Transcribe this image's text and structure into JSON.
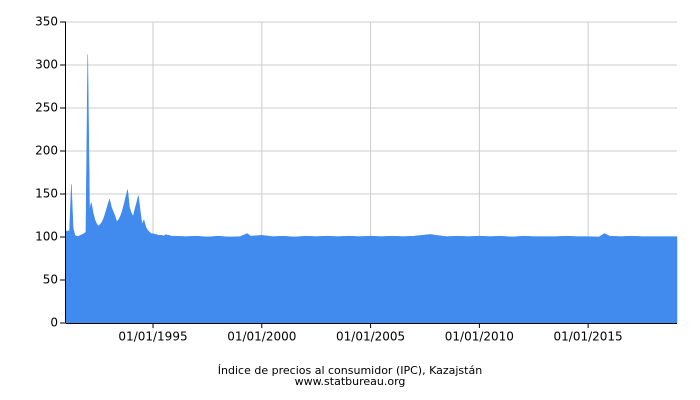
{
  "chart_data": {
    "type": "area",
    "title": "Índice de precios al consumidor (IPC), Kazajstán",
    "subtitle": "www.statbureau.org",
    "color": "#418bef",
    "grid": true,
    "xlim": [
      "1991-01-01",
      "2019-02-01"
    ],
    "xticks": [
      {
        "value": "1995-01-01",
        "label": "01/01/1995"
      },
      {
        "value": "2000-01-01",
        "label": "01/01/2000"
      },
      {
        "value": "2005-01-01",
        "label": "01/01/2005"
      },
      {
        "value": "2010-01-01",
        "label": "01/01/2010"
      },
      {
        "value": "2015-01-01",
        "label": "01/01/2015"
      }
    ],
    "ylim": [
      0,
      350
    ],
    "yticks": [
      0,
      50,
      100,
      150,
      200,
      250,
      300,
      350
    ],
    "x": [
      "1991-01-01",
      "1991-02-01",
      "1991-03-01",
      "1991-04-01",
      "1991-05-01",
      "1991-06-01",
      "1991-07-01",
      "1991-08-01",
      "1991-09-01",
      "1991-10-01",
      "1991-11-01",
      "1991-12-01",
      "1992-01-01",
      "1992-02-01",
      "1992-03-01",
      "1992-04-01",
      "1992-05-01",
      "1992-06-01",
      "1992-07-01",
      "1992-08-01",
      "1992-09-01",
      "1992-10-01",
      "1992-11-01",
      "1992-12-01",
      "1993-01-01",
      "1993-02-01",
      "1993-03-01",
      "1993-04-01",
      "1993-05-01",
      "1993-06-01",
      "1993-07-01",
      "1993-08-01",
      "1993-09-01",
      "1993-10-01",
      "1993-11-01",
      "1993-12-01",
      "1994-01-01",
      "1994-02-01",
      "1994-03-01",
      "1994-04-01",
      "1994-05-01",
      "1994-06-01",
      "1994-07-01",
      "1994-08-01",
      "1994-09-01",
      "1994-10-01",
      "1994-11-01",
      "1994-12-01",
      "1995-01-01",
      "1995-02-01",
      "1995-03-01",
      "1995-04-01",
      "1995-05-01",
      "1995-06-01",
      "1995-07-01",
      "1995-08-01",
      "1995-09-01",
      "1995-10-01",
      "1995-11-01",
      "1995-12-01",
      "1996-01-01",
      "1996-07-01",
      "1997-01-01",
      "1997-07-01",
      "1998-01-01",
      "1998-07-01",
      "1999-01-01",
      "1999-05-01",
      "1999-07-01",
      "2000-01-01",
      "2000-07-01",
      "2001-01-01",
      "2001-07-01",
      "2002-01-01",
      "2002-07-01",
      "2003-01-01",
      "2003-07-01",
      "2004-01-01",
      "2004-07-01",
      "2005-01-01",
      "2005-07-01",
      "2006-01-01",
      "2006-07-01",
      "2007-01-01",
      "2007-10-01",
      "2008-01-01",
      "2008-07-01",
      "2009-01-01",
      "2009-07-01",
      "2010-01-01",
      "2010-07-01",
      "2011-01-01",
      "2011-07-01",
      "2012-01-01",
      "2012-07-01",
      "2013-01-01",
      "2013-07-01",
      "2014-01-01",
      "2014-07-01",
      "2015-01-01",
      "2015-07-01",
      "2015-10-01",
      "2016-01-01",
      "2016-07-01",
      "2017-01-01",
      "2017-07-01",
      "2018-01-01",
      "2018-07-01",
      "2019-02-01"
    ],
    "values": [
      107,
      107,
      107,
      161,
      110,
      102,
      101,
      101,
      102,
      103,
      104,
      106,
      312,
      132,
      140,
      128,
      120,
      115,
      113,
      115,
      118,
      123,
      130,
      137,
      144,
      135,
      130,
      125,
      118,
      120,
      124,
      130,
      138,
      147,
      155,
      135,
      128,
      124,
      132,
      140,
      148,
      130,
      115,
      120,
      112,
      108,
      106,
      104,
      104,
      103,
      103,
      102,
      102,
      102,
      101,
      103,
      102,
      102,
      101,
      101,
      101,
      100.5,
      101,
      100,
      101,
      100,
      100.5,
      104,
      101,
      102,
      100.5,
      101,
      100,
      101,
      100.5,
      101,
      100.5,
      101,
      100.5,
      101,
      100.5,
      101,
      100.5,
      101,
      103,
      102,
      100.5,
      101,
      100.5,
      101,
      100.5,
      101,
      100,
      101,
      100.5,
      100.5,
      100.5,
      101,
      100.5,
      100.5,
      100,
      104,
      101,
      100.5,
      101,
      100.5,
      100.5,
      100.5,
      100.5
    ]
  }
}
